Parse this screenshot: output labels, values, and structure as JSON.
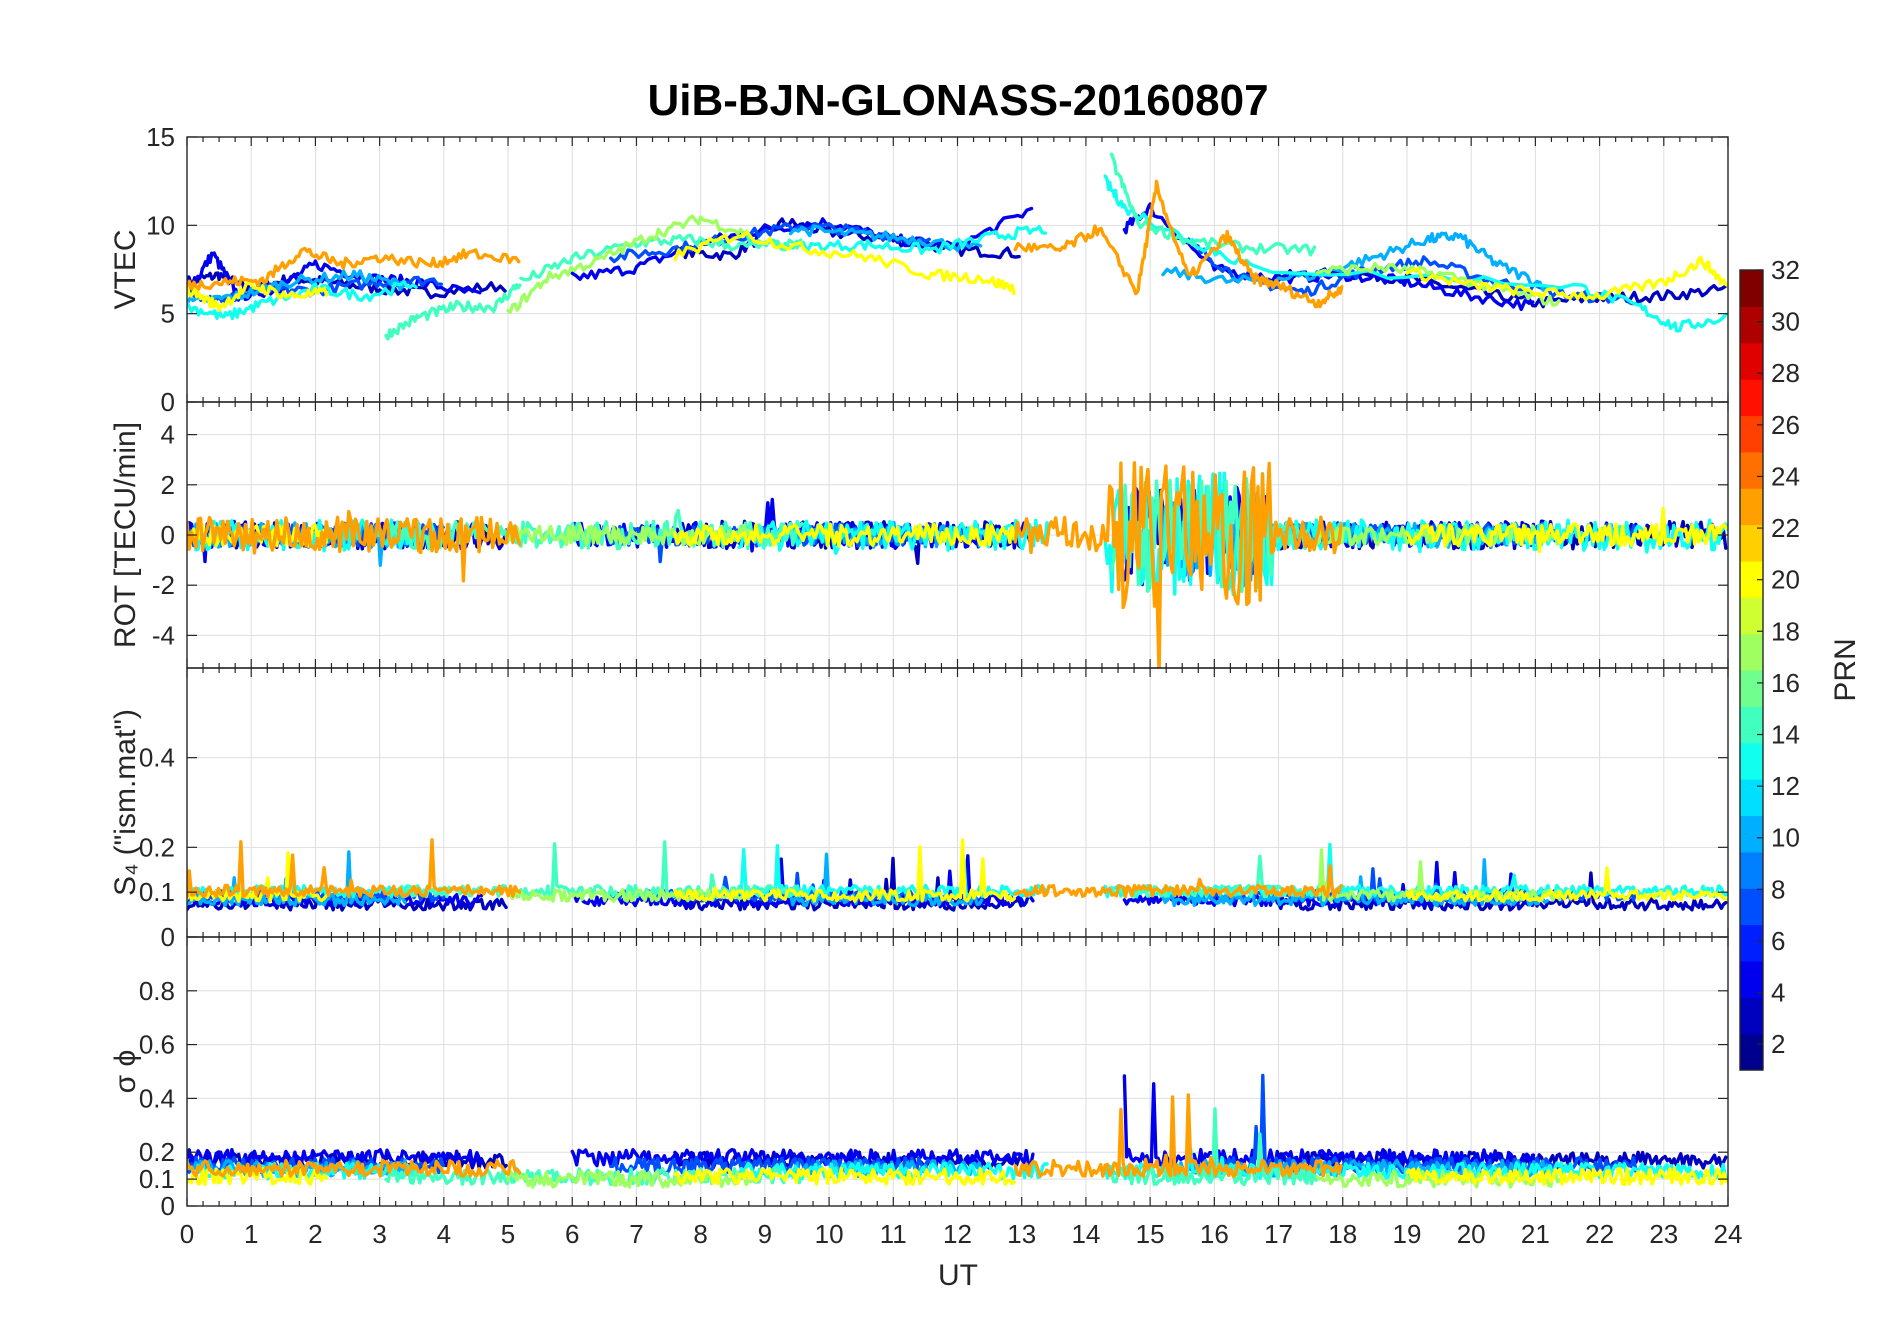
{
  "chart_data": {
    "type": "line",
    "title": "UiB-BJN-GLONASS-20160807",
    "xlabel": "UT",
    "x_ticks": [
      "0",
      "1",
      "2",
      "3",
      "4",
      "5",
      "6",
      "7",
      "8",
      "9",
      "10",
      "11",
      "12",
      "13",
      "14",
      "15",
      "16",
      "17",
      "18",
      "19",
      "20",
      "21",
      "22",
      "23",
      "24"
    ],
    "xlim": [
      0,
      24
    ],
    "grid": true,
    "panels": [
      {
        "id": "vtec",
        "ylabel": "VTEC",
        "ylim": [
          0,
          15
        ],
        "y_ticks": [
          "0",
          "5",
          "10",
          "15"
        ],
        "y_tick_values": [
          0,
          5,
          10,
          15
        ]
      },
      {
        "id": "rot",
        "ylabel": "ROT [TECU/min]",
        "ylim": [
          -5.3,
          5.3
        ],
        "y_ticks": [
          "-4",
          "-2",
          "0",
          "2",
          "4"
        ],
        "y_tick_values": [
          -4,
          -2,
          0,
          2,
          4
        ]
      },
      {
        "id": "s4",
        "ylabel": "S₄ (\"ism.mat\")",
        "ylim": [
          0,
          0.6
        ],
        "y_ticks": [
          "0",
          "0.1",
          "0.2",
          "0.4"
        ],
        "y_tick_values": [
          0,
          0.1,
          0.2,
          0.4
        ]
      },
      {
        "id": "sigma",
        "ylabel": "σ ϕ",
        "ylim": [
          0,
          1
        ],
        "y_ticks": [
          "0",
          "0.1",
          "0.2",
          "0.4",
          "0.6",
          "0.8"
        ],
        "y_tick_values": [
          0,
          0.1,
          0.2,
          0.4,
          0.6,
          0.8
        ]
      }
    ],
    "colorbar": {
      "label": "PRN",
      "range": [
        1,
        32
      ],
      "ticks": [
        "2",
        "4",
        "6",
        "8",
        "10",
        "12",
        "14",
        "16",
        "18",
        "20",
        "22",
        "24",
        "26",
        "28",
        "30",
        "32"
      ],
      "tick_values": [
        2,
        4,
        6,
        8,
        10,
        12,
        14,
        16,
        18,
        20,
        22,
        24,
        26,
        28,
        30,
        32
      ],
      "colormap": "jet",
      "colors": [
        "#00008f",
        "#0000bf",
        "#0000ef",
        "#001fff",
        "#004fff",
        "#007fff",
        "#00afff",
        "#00dfff",
        "#10ffef",
        "#40ffbf",
        "#70ff8f",
        "#9fff60",
        "#cfff30",
        "#ffff00",
        "#ffcf00",
        "#ff9f00",
        "#ff7000",
        "#ff4000",
        "#ff1000",
        "#df0000",
        "#af0000",
        "#800000"
      ]
    },
    "series": [
      {
        "prn": 2,
        "vtec": [
          [
            0,
            6.8
          ],
          [
            0.5,
            7.2
          ],
          [
            1,
            6.3
          ],
          [
            1.6,
            7.0
          ],
          [
            2.2,
            6.8
          ],
          [
            3,
            6.4
          ],
          [
            3.8,
            6.2
          ],
          [
            5,
            6.6
          ]
        ],
        "vtec2": [
          [
            7.6,
            8.5
          ],
          [
            8.5,
            8.3
          ],
          [
            9.3,
            10.2
          ],
          [
            10,
            9.6
          ],
          [
            11,
            9.2
          ],
          [
            12,
            8.6
          ],
          [
            13,
            8.4
          ]
        ],
        "vtec3": [
          [
            17,
            7.1
          ],
          [
            18,
            7.3
          ],
          [
            19,
            7.0
          ],
          [
            20,
            6.3
          ],
          [
            21,
            5.6
          ],
          [
            22,
            5.9
          ],
          [
            23,
            6.0
          ],
          [
            24,
            6.4
          ]
        ],
        "rot": 1.0,
        "s4": 0.06,
        "sigma": 0.17
      },
      {
        "prn": 4,
        "vtec": [
          [
            0,
            6.1
          ],
          [
            0.4,
            8.4
          ],
          [
            0.8,
            6.0
          ],
          [
            1.4,
            6.4
          ],
          [
            2,
            7.8
          ],
          [
            2.8,
            7.0
          ],
          [
            3.6,
            6.8
          ],
          [
            4.6,
            6.0
          ]
        ],
        "vtec2": [
          [
            6,
            7.0
          ],
          [
            7,
            7.6
          ],
          [
            8,
            9.0
          ],
          [
            9,
            9.8
          ],
          [
            10,
            10.2
          ],
          [
            11,
            9.2
          ],
          [
            12,
            8.8
          ],
          [
            13.2,
            11
          ]
        ],
        "vtec3": [
          [
            14.6,
            9.8
          ],
          [
            15,
            11
          ],
          [
            16,
            7.5
          ],
          [
            17,
            7.0
          ],
          [
            18,
            7.2
          ],
          [
            19,
            6.8
          ],
          [
            20,
            6.0
          ],
          [
            21,
            5.4
          ]
        ],
        "rot": 0.9,
        "s4": 0.07,
        "sigma": 0.18
      },
      {
        "prn": 7,
        "vtec": [
          [
            0,
            6.2
          ],
          [
            0.6,
            5.8
          ],
          [
            1.2,
            6.4
          ],
          [
            2,
            6.3
          ],
          [
            3,
            6.8
          ],
          [
            4,
            6.9
          ]
        ],
        "vtec2": [
          [
            6.6,
            8.2
          ],
          [
            7.5,
            8.6
          ],
          [
            8.6,
            9.4
          ],
          [
            9.6,
            10.0
          ],
          [
            10.6,
            9.6
          ],
          [
            11.6,
            9.0
          ]
        ],
        "vtec3": [
          [
            15.6,
            9.0
          ],
          [
            16.4,
            7.0
          ],
          [
            17.4,
            6.2
          ],
          [
            18.3,
            7.4
          ],
          [
            19.3,
            8.0
          ],
          [
            20.4,
            6.8
          ],
          [
            21.6,
            6.0
          ],
          [
            22.6,
            5.8
          ]
        ],
        "rot": 0.8,
        "s4": 0.08,
        "sigma": 0.15
      },
      {
        "prn": 10,
        "vtec": [
          [
            0,
            5.6
          ],
          [
            0.8,
            6.0
          ],
          [
            1.6,
            6.8
          ],
          [
            2.6,
            7.2
          ],
          [
            3.4,
            6.6
          ]
        ],
        "vtec2": [
          [
            9.4,
            9.8
          ],
          [
            10.4,
            9.5
          ],
          [
            11.4,
            9.2
          ],
          [
            12.4,
            8.6
          ]
        ],
        "vtec3": [
          [
            15.2,
            7.4
          ],
          [
            16.3,
            6.8
          ],
          [
            17.6,
            7.2
          ],
          [
            18.5,
            8.2
          ],
          [
            19.3,
            9.2
          ],
          [
            19.8,
            9.4
          ],
          [
            20.4,
            7.8
          ],
          [
            21.2,
            6.5
          ]
        ],
        "rot": 0.9,
        "s4": 0.07,
        "sigma": 0.14
      },
      {
        "prn": 13,
        "vtec": [
          [
            0,
            5.4
          ],
          [
            0.6,
            4.8
          ],
          [
            1.2,
            5.6
          ],
          [
            2,
            6.4
          ],
          [
            2.8,
            6.0
          ],
          [
            3.6,
            6.8
          ]
        ],
        "vtec2": [
          [
            8.6,
            9.2
          ],
          [
            9.6,
            8.8
          ],
          [
            10.6,
            8.9
          ],
          [
            11.6,
            8.6
          ],
          [
            12.6,
            9.4
          ],
          [
            13.4,
            9.8
          ]
        ],
        "vtec3": [
          [
            14.3,
            12.5
          ],
          [
            14.6,
            11
          ],
          [
            15.6,
            9.2
          ],
          [
            16.6,
            7.6
          ],
          [
            21.6,
            6.6
          ],
          [
            22.6,
            5.4
          ],
          [
            23.2,
            4.2
          ],
          [
            24,
            4.8
          ]
        ],
        "rot": 1.1,
        "s4": 0.09,
        "sigma": 0.13
      },
      {
        "prn": 15,
        "vtec": [
          [
            3.1,
            3.8
          ],
          [
            3.6,
            4.8
          ],
          [
            4.2,
            5.4
          ],
          [
            4.8,
            5.4
          ],
          [
            5.2,
            6.8
          ]
        ],
        "vtec2": [
          [
            5.2,
            6.8
          ],
          [
            6,
            8.1
          ],
          [
            7,
            9.0
          ],
          [
            7.8,
            9.2
          ],
          [
            8.6,
            8.8
          ],
          [
            9.6,
            8.9
          ]
        ],
        "vtec3": [
          [
            14.4,
            13.8
          ],
          [
            14.8,
            10.2
          ],
          [
            15.6,
            9.1
          ],
          [
            16.6,
            8.7
          ],
          [
            17.6,
            8.6
          ]
        ],
        "rot": 1.0,
        "s4": 0.09,
        "sigma": 0.11
      },
      {
        "prn": 17,
        "vtec": [
          [
            5.0,
            5.0
          ],
          [
            5.6,
            7.0
          ],
          [
            6.4,
            8.0
          ],
          [
            7.2,
            9.4
          ],
          [
            8,
            10.4
          ],
          [
            8.8,
            9.4
          ]
        ],
        "vtec2": [
          [
            17.6,
            7.4
          ],
          [
            18.6,
            7.6
          ],
          [
            19.6,
            7.2
          ],
          [
            20.6,
            6.2
          ],
          [
            21.4,
            5.6
          ]
        ],
        "vtec3": [],
        "rot": 0.7,
        "s4": 0.08,
        "sigma": 0.1
      },
      {
        "prn": 20,
        "vtec": [
          [
            0,
            6.4
          ],
          [
            0.5,
            5.4
          ],
          [
            1,
            6.6
          ],
          [
            1.6,
            6.0
          ],
          [
            2.2,
            6.2
          ]
        ],
        "vtec2": [
          [
            7.6,
            8.3
          ],
          [
            8.6,
            9.5
          ],
          [
            9.6,
            8.7
          ],
          [
            10.6,
            8.2
          ],
          [
            11.6,
            7.2
          ],
          [
            12.4,
            7.0
          ],
          [
            12.9,
            6.4
          ]
        ],
        "vtec3": [
          [
            19,
            7.4
          ],
          [
            20,
            6.6
          ],
          [
            21,
            6.2
          ],
          [
            22,
            6.0
          ],
          [
            23,
            6.8
          ],
          [
            23.6,
            8.0
          ],
          [
            24,
            6.5
          ]
        ],
        "rot": 0.8,
        "s4": 0.08,
        "sigma": 0.11
      },
      {
        "prn": 23,
        "vtec": [
          [
            0,
            6.6
          ],
          [
            0.6,
            6.8
          ],
          [
            1.2,
            6.9
          ],
          [
            1.8,
            8.6
          ],
          [
            2.4,
            7.8
          ],
          [
            3,
            8.2
          ],
          [
            3.8,
            7.8
          ],
          [
            4.4,
            8.4
          ],
          [
            5.2,
            8.0
          ]
        ],
        "vtec2": [
          [
            12.9,
            8.8
          ],
          [
            13.6,
            8.6
          ],
          [
            14.2,
            9.8
          ],
          [
            14.8,
            6.2
          ],
          [
            15.1,
            12.2
          ],
          [
            15.6,
            7.0
          ],
          [
            16.2,
            9.4
          ],
          [
            16.6,
            7.0
          ],
          [
            17,
            6.6
          ],
          [
            17.6,
            5.6
          ],
          [
            18,
            6.4
          ]
        ],
        "vtec3": [],
        "rot": 1.3,
        "s4": 0.09,
        "sigma": 0.14
      }
    ]
  }
}
